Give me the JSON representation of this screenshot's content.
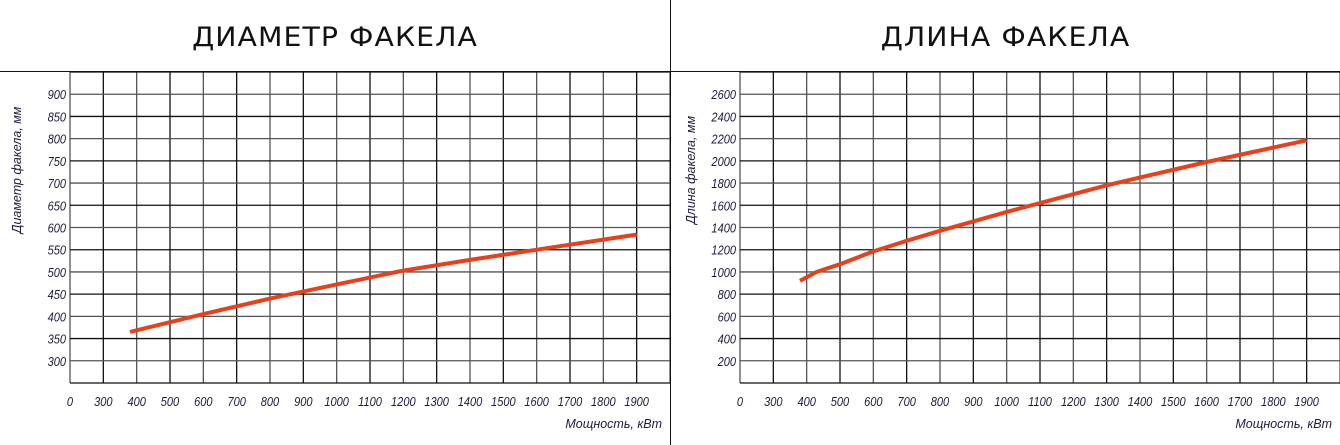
{
  "line_color": "#e8401c",
  "chart_data": [
    {
      "type": "line",
      "title": "ДИАМЕТР ФАКЕЛА",
      "xlabel": "Мощность, кВт",
      "ylabel": "Диаметр факела, мм",
      "x_ticks": [
        "0",
        "300",
        "400",
        "500",
        "600",
        "700",
        "800",
        "900",
        "1000",
        "1100",
        "1200",
        "1300",
        "1400",
        "1500",
        "1600",
        "1700",
        "1800",
        "1900"
      ],
      "y_ticks": [
        "300",
        "350",
        "400",
        "450",
        "500",
        "550",
        "600",
        "650",
        "700",
        "750",
        "800",
        "850",
        "900"
      ],
      "ylim": [
        250,
        950
      ],
      "grid": true,
      "series": [
        {
          "x": [
            380,
            600,
            800,
            1000,
            1200,
            1400,
            1600,
            1900
          ],
          "y": [
            365,
            405,
            440,
            472,
            503,
            527,
            550,
            584
          ]
        }
      ]
    },
    {
      "type": "line",
      "title": "ДЛИНА ФАКЕЛА",
      "xlabel": "Мощность, кВт",
      "ylabel": "Длина факела, мм",
      "x_ticks": [
        "0",
        "300",
        "400",
        "500",
        "600",
        "700",
        "800",
        "900",
        "1000",
        "1100",
        "1200",
        "1300",
        "1400",
        "1500",
        "1600",
        "1700",
        "1800",
        "1900"
      ],
      "y_ticks": [
        "200",
        "400",
        "600",
        "800",
        "1000",
        "1200",
        "1400",
        "1600",
        "1800",
        "2000",
        "2200",
        "2400",
        "2600"
      ],
      "ylim": [
        0,
        2800
      ],
      "grid": true,
      "series": [
        {
          "x": [
            380,
            430,
            500,
            600,
            700,
            800,
            1000,
            1200,
            1300,
            1600,
            1900
          ],
          "y": [
            920,
            1000,
            1070,
            1185,
            1280,
            1370,
            1540,
            1700,
            1780,
            1990,
            2185
          ]
        }
      ]
    }
  ]
}
